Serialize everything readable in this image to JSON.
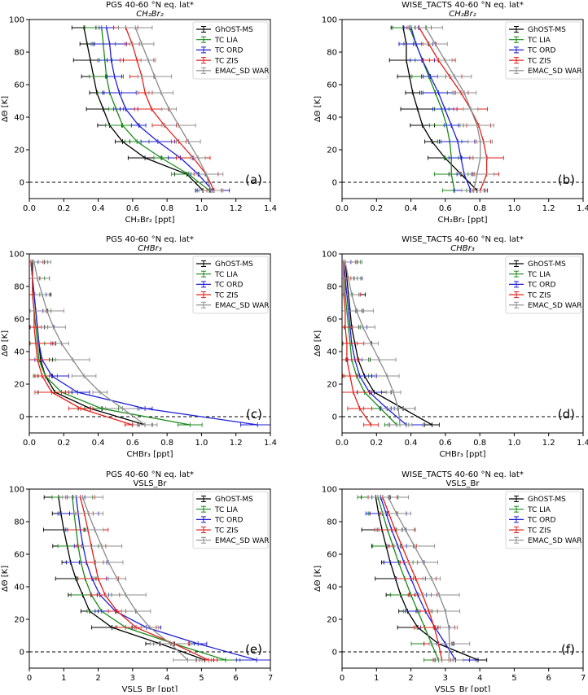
{
  "colors": {
    "GhOST-MS": "#000000",
    "TC LIA": "#1a8a1a",
    "TC ORD": "#1f1fd6",
    "TC ZIS": "#e0201b",
    "EMAC_SD WAR": "#8c8c8c"
  },
  "chart_data": [
    {
      "type": "line",
      "panel": "(a)",
      "title": "PGS 40-60$^\\circ$N eq. lat*",
      "title_text": "PGS 40-60 °N eq. lat*",
      "subtitle": "CH₂Br₂",
      "xlabel": "CH₂Br₂ [ppt]",
      "ylabel": "ΔΘ [K]",
      "xlim": [
        0,
        1.5
      ],
      "ylim": [
        -10,
        100
      ],
      "xticks": [
        "0.0",
        "0.2",
        "0.4",
        "0.6",
        "0.8",
        "1.0",
        "1.2",
        "1.4"
      ],
      "yticks": [
        "0",
        "20",
        "40",
        "60",
        "80",
        "100"
      ],
      "legend": "upper right",
      "reference_line_y": 0,
      "y": [
        -5,
        5,
        15,
        25,
        35,
        45,
        55,
        65,
        75,
        85,
        95
      ],
      "series": [
        {
          "name": "GhOST-MS",
          "x": [
            1.08,
            0.98,
            0.72,
            0.58,
            0.5,
            0.46,
            0.42,
            0.4,
            0.38,
            0.36,
            0.34
          ]
        },
        {
          "name": "TC LIA",
          "x": [
            1.12,
            0.99,
            0.82,
            0.67,
            0.58,
            0.54,
            0.5,
            0.48,
            0.47,
            0.46,
            0.45
          ]
        },
        {
          "name": "TC ORD",
          "x": [
            1.14,
            1.05,
            0.94,
            0.8,
            0.68,
            0.6,
            0.56,
            0.53,
            0.51,
            0.5,
            0.48
          ]
        },
        {
          "name": "TC ZIS",
          "x": [
            1.15,
            1.1,
            1.02,
            0.93,
            0.84,
            0.76,
            0.72,
            0.7,
            0.67,
            0.64,
            0.6
          ]
        },
        {
          "name": "EMAC_SD WAR",
          "x": [
            1.13,
            1.1,
            1.05,
            0.99,
            0.93,
            0.87,
            0.82,
            0.78,
            0.74,
            0.7,
            0.66
          ]
        }
      ]
    },
    {
      "type": "line",
      "panel": "(b)",
      "title_text": "WISE_TACTS 40-60 °N eq. lat*",
      "subtitle": "CH₂Br₂",
      "xlabel": "CH₂Br₂ [ppt]",
      "ylabel": "ΔΘ [K]",
      "xlim": [
        0,
        1.5
      ],
      "ylim": [
        -10,
        100
      ],
      "xticks": [
        "0.0",
        "0.2",
        "0.4",
        "0.6",
        "0.8",
        "1.0",
        "1.2",
        "1.4"
      ],
      "yticks": [
        "0",
        "20",
        "40",
        "60",
        "80",
        "100"
      ],
      "legend": "upper right",
      "reference_line_y": 0,
      "y": [
        -5,
        5,
        15,
        25,
        35,
        45,
        55,
        65,
        75,
        85,
        95
      ],
      "series": [
        {
          "name": "GhOST-MS",
          "x": [
            0.84,
            0.74,
            0.64,
            0.56,
            0.5,
            0.47,
            0.44,
            0.42,
            0.4,
            0.4,
            0.38
          ]
        },
        {
          "name": "TC LIA",
          "x": [
            0.7,
            0.68,
            0.68,
            0.67,
            0.65,
            0.62,
            0.58,
            0.54,
            0.5,
            0.46,
            0.42
          ]
        },
        {
          "name": "TC ORD",
          "x": [
            0.8,
            0.76,
            0.74,
            0.72,
            0.68,
            0.64,
            0.6,
            0.55,
            0.5,
            0.46,
            0.43
          ]
        },
        {
          "name": "TC ZIS",
          "x": [
            0.86,
            0.9,
            0.9,
            0.88,
            0.85,
            0.8,
            0.74,
            0.67,
            0.6,
            0.54,
            0.48
          ]
        },
        {
          "name": "EMAC_SD WAR",
          "x": [
            0.82,
            0.84,
            0.86,
            0.86,
            0.84,
            0.8,
            0.76,
            0.7,
            0.64,
            0.58,
            0.52
          ]
        }
      ]
    },
    {
      "type": "line",
      "panel": "(c)",
      "title_text": "PGS 40-60 °N eq. lat*",
      "subtitle": "CHBr₃",
      "xlabel": "CHBr₃ [ppt]",
      "ylabel": "ΔΘ [K]",
      "xlim": [
        0,
        1.5
      ],
      "ylim": [
        -10,
        100
      ],
      "xticks": [
        "0.0",
        "0.2",
        "0.4",
        "0.6",
        "0.8",
        "1.0",
        "1.2",
        "1.4"
      ],
      "yticks": [
        "0",
        "20",
        "40",
        "60",
        "80",
        "100"
      ],
      "legend": "upper right",
      "reference_line_y": 0,
      "y": [
        -5,
        5,
        15,
        25,
        35,
        45,
        55,
        65,
        75,
        85,
        95
      ],
      "series": [
        {
          "name": "GhOST-MS",
          "x": [
            0.72,
            0.38,
            0.16,
            0.1,
            0.07,
            0.06,
            0.05,
            0.04,
            0.03,
            0.02,
            0.02
          ]
        },
        {
          "name": "TC LIA",
          "x": [
            1.0,
            0.45,
            0.2,
            0.1,
            0.06,
            0.05,
            0.04,
            0.03,
            0.02,
            0.02,
            0.01
          ]
        },
        {
          "name": "TC ORD",
          "x": [
            1.42,
            0.72,
            0.3,
            0.14,
            0.08,
            0.06,
            0.05,
            0.04,
            0.03,
            0.02,
            0.01
          ]
        },
        {
          "name": "TC ZIS",
          "x": [
            0.64,
            0.32,
            0.14,
            0.08,
            0.05,
            0.04,
            0.03,
            0.03,
            0.02,
            0.02,
            0.01
          ]
        },
        {
          "name": "EMAC_SD WAR",
          "x": [
            0.72,
            0.58,
            0.44,
            0.34,
            0.27,
            0.2,
            0.15,
            0.11,
            0.08,
            0.05,
            0.03
          ]
        }
      ]
    },
    {
      "type": "line",
      "panel": "(d)",
      "title_text": "WISE_TACTS 40-60 °N eq. lat*",
      "subtitle": "CHBr₃",
      "xlabel": "CHBr₃ [ppt]",
      "ylabel": "ΔΘ [K]",
      "xlim": [
        0,
        1.5
      ],
      "ylim": [
        -10,
        100
      ],
      "xticks": [
        "0.0",
        "0.2",
        "0.4",
        "0.6",
        "0.8",
        "1.0",
        "1.2",
        "1.4"
      ],
      "yticks": [
        "0",
        "20",
        "40",
        "60",
        "80",
        "100"
      ],
      "legend": "upper right",
      "reference_line_y": 0,
      "y": [
        -5,
        5,
        15,
        25,
        35,
        45,
        55,
        65,
        75,
        85,
        95
      ],
      "series": [
        {
          "name": "GhOST-MS",
          "x": [
            0.56,
            0.38,
            0.2,
            0.14,
            0.1,
            0.08,
            0.06,
            0.05,
            0.04,
            0.03,
            0.02
          ]
        },
        {
          "name": "TC LIA",
          "x": [
            0.34,
            0.24,
            0.14,
            0.09,
            0.06,
            0.05,
            0.04,
            0.03,
            0.02,
            0.02,
            0.01
          ]
        },
        {
          "name": "TC ORD",
          "x": [
            0.4,
            0.28,
            0.17,
            0.11,
            0.08,
            0.06,
            0.05,
            0.04,
            0.03,
            0.02,
            0.01
          ]
        },
        {
          "name": "TC ZIS",
          "x": [
            0.18,
            0.11,
            0.07,
            0.05,
            0.03,
            0.03,
            0.02,
            0.02,
            0.01,
            0.01,
            0.01
          ]
        },
        {
          "name": "EMAC_SD WAR",
          "x": [
            0.36,
            0.35,
            0.32,
            0.28,
            0.23,
            0.18,
            0.13,
            0.09,
            0.06,
            0.04,
            0.02
          ]
        }
      ]
    },
    {
      "type": "line",
      "panel": "(e)",
      "title_text": "PGS 40-60 °N eq. lat*",
      "subtitle": "VSLS_Br",
      "xlabel": "VSLS_Br [ppt]",
      "ylabel": "ΔΘ [K]",
      "xlim": [
        0,
        7
      ],
      "ylim": [
        -10,
        100
      ],
      "xticks": [
        "0",
        "1",
        "2",
        "3",
        "4",
        "5",
        "6",
        "7"
      ],
      "yticks": [
        "0",
        "20",
        "40",
        "60",
        "80",
        "100"
      ],
      "legend": "upper right",
      "reference_line_y": 0,
      "y": [
        -5,
        5,
        15,
        25,
        35,
        45,
        55,
        65,
        75,
        85,
        95
      ],
      "series": [
        {
          "name": "GhOST-MS",
          "x": [
            5.1,
            3.8,
            2.4,
            1.75,
            1.55,
            1.35,
            1.2,
            1.1,
            1.0,
            0.92,
            0.85
          ]
        },
        {
          "name": "TC LIA",
          "x": [
            5.7,
            4.2,
            2.8,
            2.1,
            1.8,
            1.62,
            1.5,
            1.42,
            1.36,
            1.3,
            1.25
          ]
        },
        {
          "name": "TC ORD",
          "x": [
            6.6,
            4.9,
            3.4,
            2.5,
            2.05,
            1.82,
            1.66,
            1.56,
            1.48,
            1.42,
            1.36
          ]
        },
        {
          "name": "TC ZIS",
          "x": [
            5.2,
            4.2,
            3.1,
            2.55,
            2.2,
            2.0,
            1.9,
            1.8,
            1.7,
            1.6,
            1.48
          ]
        },
        {
          "name": "EMAC_SD WAR",
          "x": [
            4.6,
            4.1,
            3.5,
            3.1,
            2.8,
            2.55,
            2.3,
            2.1,
            1.9,
            1.72,
            1.55
          ]
        }
      ]
    },
    {
      "type": "line",
      "panel": "(f)",
      "title_text": "WISE_TACTS 40-60 °N eq. lat*",
      "subtitle": "VSLS_Br",
      "xlabel": "VSLS_Br [ppt]",
      "ylabel": "ΔΘ [K]",
      "xlim": [
        0,
        7
      ],
      "ylim": [
        -10,
        100
      ],
      "xticks": [
        "0",
        "1",
        "2",
        "3",
        "4",
        "5",
        "6",
        "7"
      ],
      "yticks": [
        "0",
        "20",
        "40",
        "60",
        "80",
        "100"
      ],
      "legend": "upper right",
      "reference_line_y": 0,
      "y": [
        -5,
        5,
        15,
        25,
        35,
        45,
        55,
        65,
        75,
        85,
        95
      ],
      "series": [
        {
          "name": "GhOST-MS",
          "x": [
            3.95,
            2.8,
            2.2,
            1.9,
            1.7,
            1.55,
            1.4,
            1.28,
            1.16,
            1.06,
            0.98
          ]
        },
        {
          "name": "TC LIA",
          "x": [
            2.8,
            2.6,
            2.4,
            2.2,
            2.0,
            1.82,
            1.64,
            1.48,
            1.32,
            1.18,
            1.04
          ]
        },
        {
          "name": "TC ORD",
          "x": [
            3.3,
            3.0,
            2.7,
            2.42,
            2.2,
            2.0,
            1.8,
            1.62,
            1.44,
            1.28,
            1.12
          ]
        },
        {
          "name": "TC ZIS",
          "x": [
            2.9,
            2.8,
            2.68,
            2.52,
            2.34,
            2.14,
            1.94,
            1.74,
            1.54,
            1.36,
            1.18
          ]
        },
        {
          "name": "EMAC_SD WAR",
          "x": [
            3.1,
            3.12,
            3.1,
            3.0,
            2.82,
            2.6,
            2.36,
            2.1,
            1.84,
            1.58,
            1.34
          ]
        }
      ]
    }
  ]
}
